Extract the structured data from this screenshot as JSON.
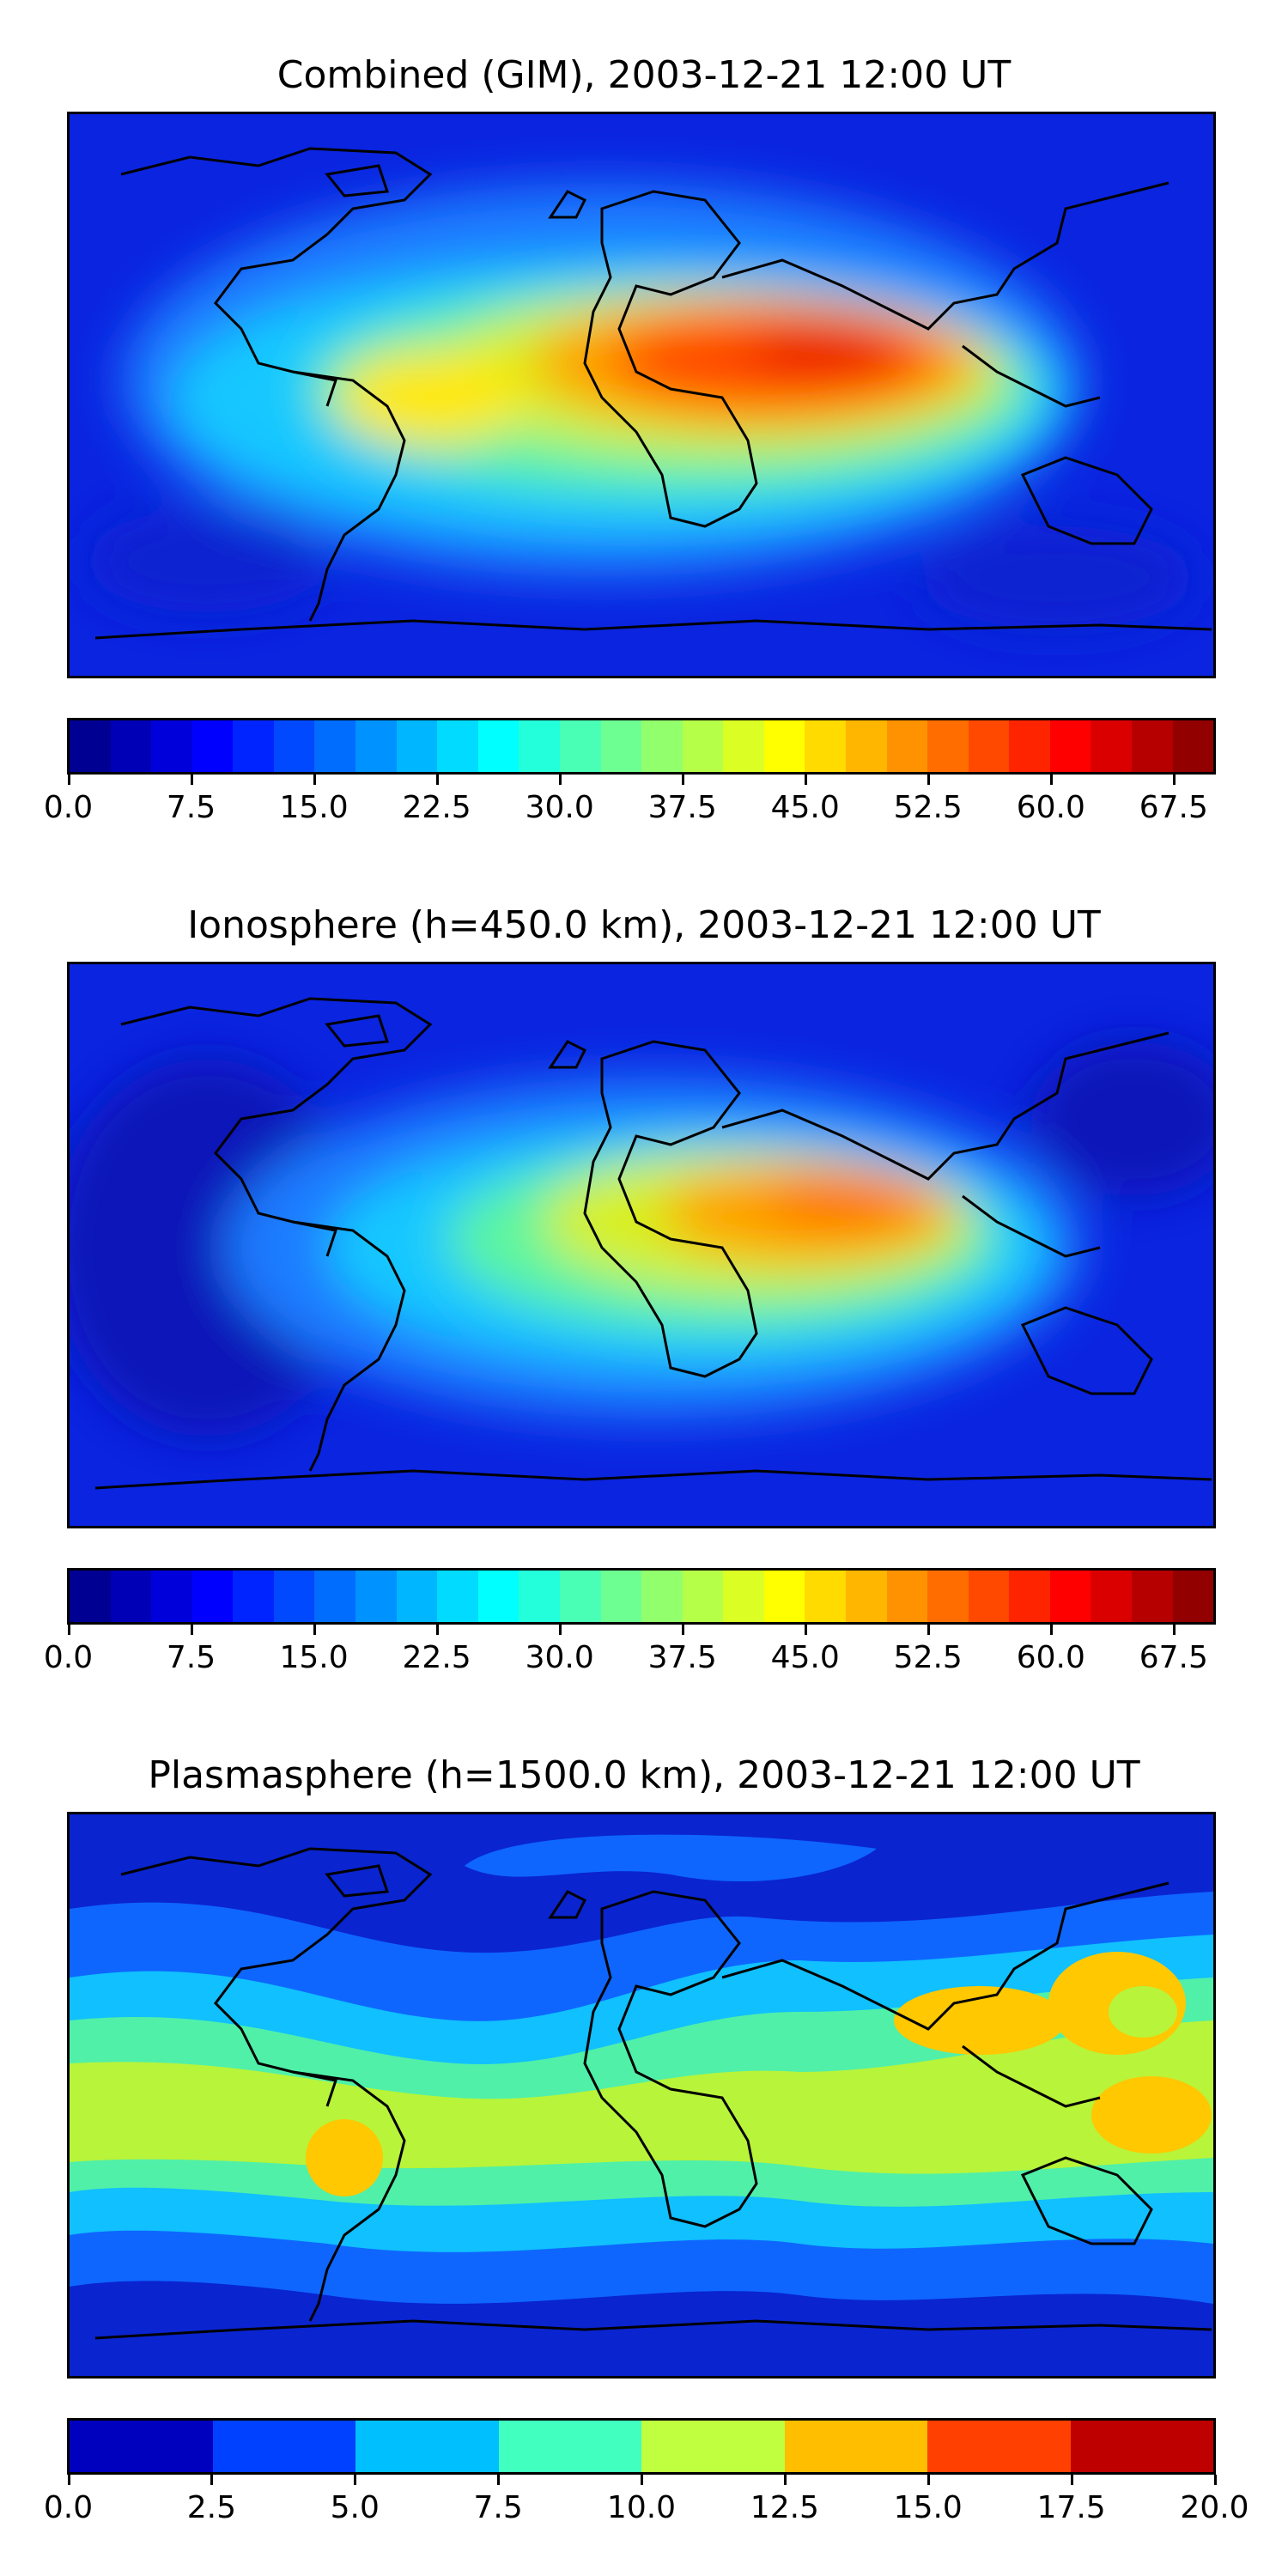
{
  "panels": [
    {
      "title": "Combined (GIM), 2003-12-21 12:00 UT",
      "variant": "combined",
      "colorbar": {
        "vmin": 0,
        "vmax": 70,
        "ticks": [
          "0.0",
          "7.5",
          "15.0",
          "22.5",
          "30.0",
          "37.5",
          "45.0",
          "52.5",
          "60.0",
          "67.5"
        ],
        "tick_values": [
          0,
          7.5,
          15,
          22.5,
          30,
          37.5,
          45,
          52.5,
          60,
          67.5
        ],
        "levels": 28,
        "colormap": "jet"
      }
    },
    {
      "title": "Ionosphere  (h=450.0 km), 2003-12-21 12:00 UT",
      "variant": "ionosphere",
      "colorbar": {
        "vmin": 0,
        "vmax": 70,
        "ticks": [
          "0.0",
          "7.5",
          "15.0",
          "22.5",
          "30.0",
          "37.5",
          "45.0",
          "52.5",
          "60.0",
          "67.5"
        ],
        "tick_values": [
          0,
          7.5,
          15,
          22.5,
          30,
          37.5,
          45,
          52.5,
          60,
          67.5
        ],
        "levels": 28,
        "colormap": "jet"
      }
    },
    {
      "title": "Plasmasphere (h=1500.0 km), 2003-12-21 12:00 UT",
      "variant": "plasmasphere",
      "colorbar": {
        "vmin": 0,
        "vmax": 20,
        "ticks": [
          "0.0",
          "2.5",
          "5.0",
          "7.5",
          "10.0",
          "12.5",
          "15.0",
          "17.5",
          "20.0"
        ],
        "tick_values": [
          0,
          2.5,
          5,
          7.5,
          10,
          12.5,
          15,
          17.5,
          20
        ],
        "levels": 8,
        "colormap": "jet"
      }
    }
  ]
}
